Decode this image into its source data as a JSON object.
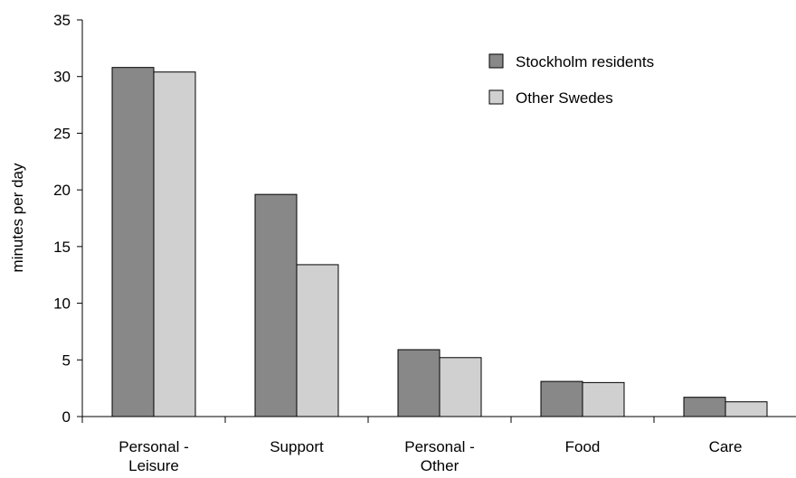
{
  "chart_data": {
    "type": "bar",
    "title": "",
    "xlabel": "",
    "ylabel": "minutes per day",
    "ylim": [
      0,
      35
    ],
    "yticks": [
      0,
      5,
      10,
      15,
      20,
      25,
      30,
      35
    ],
    "categories": [
      [
        "Personal -",
        "Leisure"
      ],
      [
        "Support"
      ],
      [
        "Personal -",
        "Other"
      ],
      [
        "Food"
      ],
      [
        "Care"
      ]
    ],
    "series": [
      {
        "name": "Stockholm residents",
        "color": "#888888",
        "values": [
          30.8,
          19.6,
          5.9,
          3.1,
          1.7
        ]
      },
      {
        "name": "Other Swedes",
        "color": "#d0d0d0",
        "values": [
          30.4,
          13.4,
          5.2,
          3.0,
          1.3
        ]
      }
    ],
    "grid": false,
    "legend_position": "top-right"
  }
}
